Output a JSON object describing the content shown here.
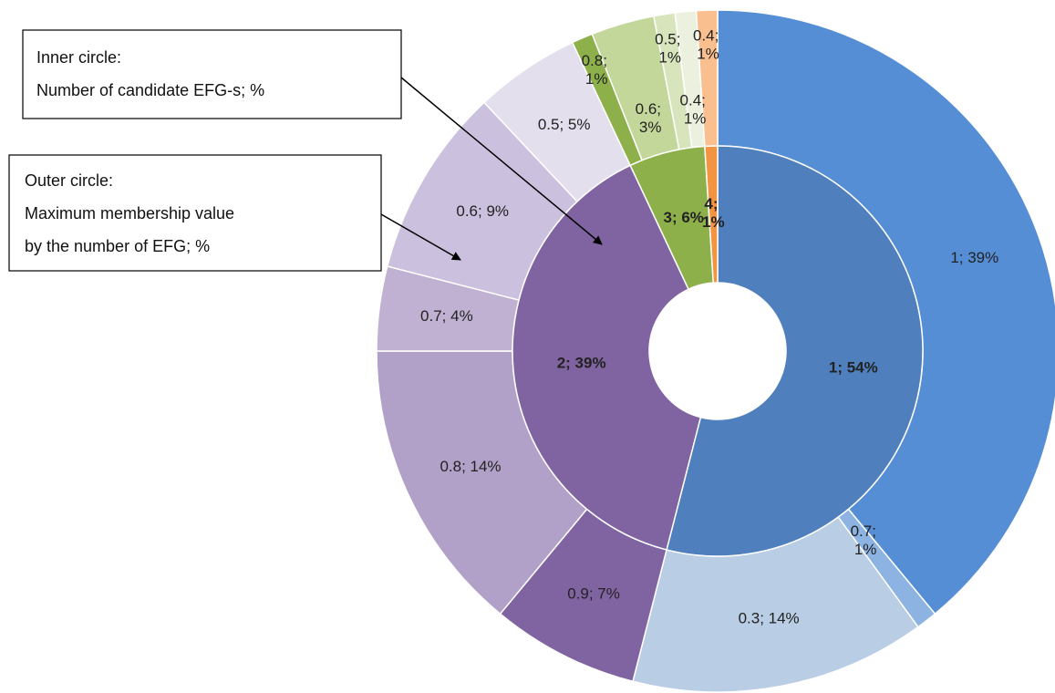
{
  "chart_data": {
    "type": "sunburst",
    "inner": {
      "categories": [
        "1",
        "2",
        "3",
        "4"
      ],
      "values": [
        54,
        39,
        6,
        1
      ],
      "value_labels": [
        "1; 54%",
        "2; 39%",
        "3; 6%",
        "4; 1%"
      ],
      "colors": [
        "#4f80bd",
        "#8064a2",
        "#8db04b",
        "#f39443"
      ]
    },
    "outer": {
      "categories": [
        "1",
        "0.7",
        "0.3",
        "0.9",
        "0.8",
        "0.7",
        "0.6",
        "0.5",
        "0.8",
        "0.6",
        "0.5",
        "0.4",
        "0.4"
      ],
      "values": [
        39,
        1,
        14,
        7,
        14,
        4,
        9,
        5,
        1,
        3,
        1,
        1,
        1
      ],
      "value_labels": [
        "1; 39%",
        "0.7; 1%",
        "0.3; 14%",
        "0.9; 7%",
        "0.8; 14%",
        "0.7; 4%",
        "0.6; 9%",
        "0.5; 5%",
        "0.8; 1%",
        "0.6; 3%",
        "0.5; 1%",
        "0.4; 1%",
        "0.4; 1%"
      ],
      "colors": [
        "#558ed5",
        "#8db3e2",
        "#b9cde5",
        "#8064a2",
        "#b1a0c7",
        "#c0b1d2",
        "#cbc0dd",
        "#e4dfec",
        "#8db04b",
        "#c4d79b",
        "#d7e4bc",
        "#ebf1de",
        "#fabf8f"
      ]
    },
    "annotations": [
      [
        "Inner circle:",
        "Number of candidate EFG-s; %"
      ],
      [
        "Outer circle:",
        "Maximum membership value",
        "by the number of EFG; %"
      ]
    ]
  }
}
